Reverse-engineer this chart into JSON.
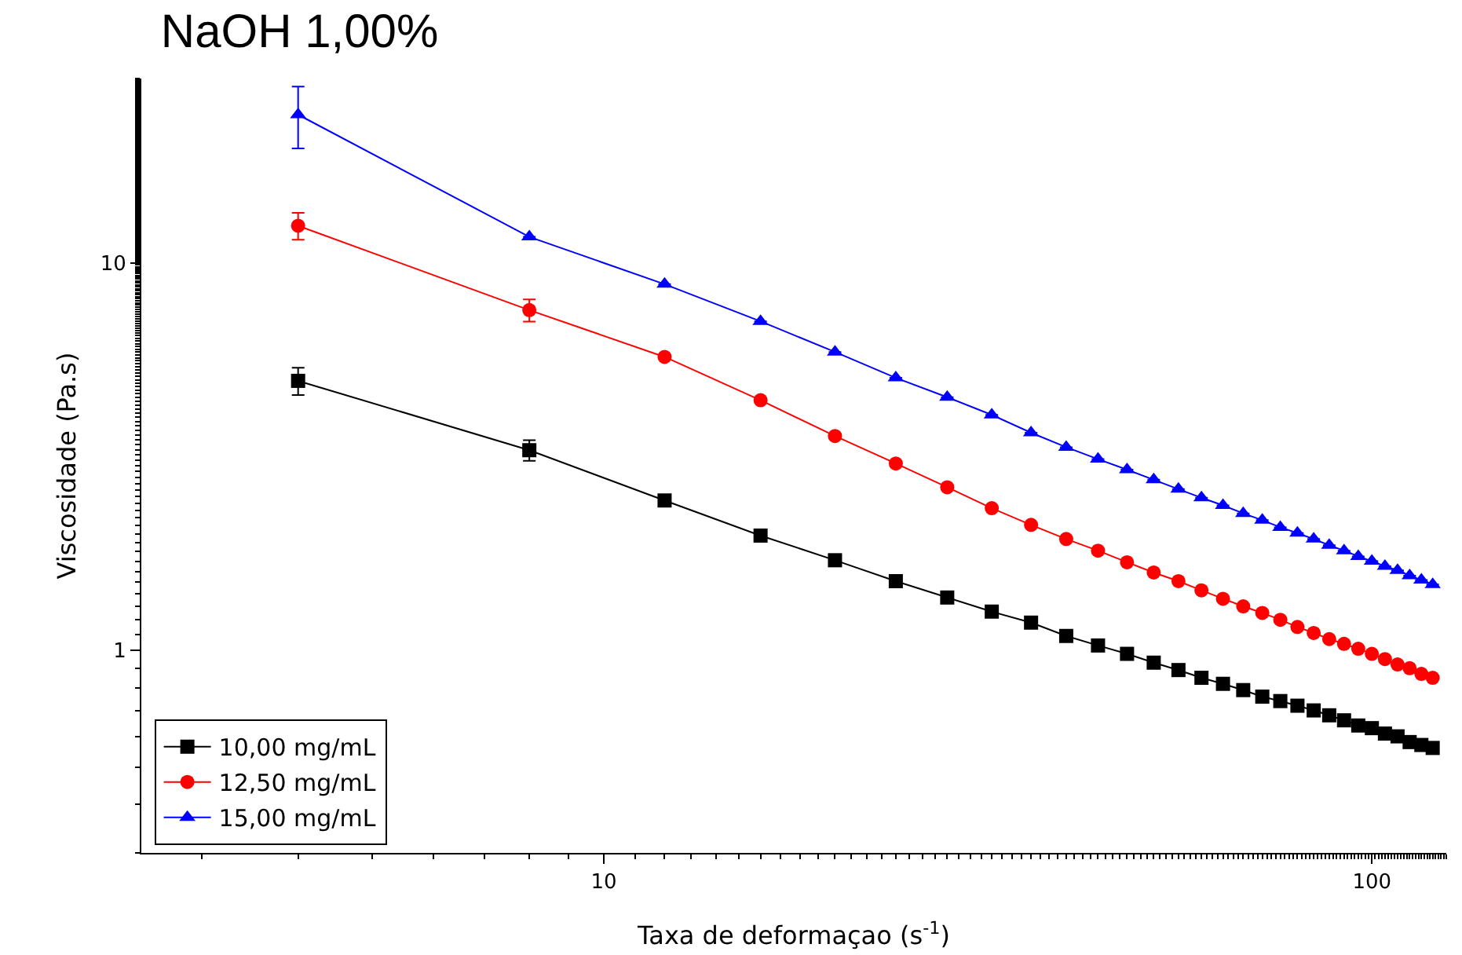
{
  "chart_data": {
    "type": "line",
    "title": "NaOH 1,00%",
    "xlabel": "Taxa de deformaçao (s$^{-1}$)",
    "ylabel": "Viscosidade (Pa.s)",
    "x": [
      4,
      8,
      12,
      16,
      20,
      24,
      28,
      32,
      36,
      40,
      44,
      48,
      52,
      56,
      60,
      64,
      68,
      72,
      76,
      80,
      84,
      88,
      92,
      96,
      100,
      104,
      108,
      112,
      116,
      120
    ],
    "series": [
      {
        "name": "10,00 mg/mL",
        "color": "#000000",
        "marker": "square",
        "values": [
          4.97,
          3.29,
          2.44,
          1.98,
          1.71,
          1.51,
          1.37,
          1.26,
          1.18,
          1.09,
          1.03,
          0.98,
          0.93,
          0.89,
          0.85,
          0.82,
          0.79,
          0.76,
          0.74,
          0.72,
          0.7,
          0.68,
          0.66,
          0.64,
          0.63,
          0.61,
          0.6,
          0.58,
          0.57,
          0.56
        ],
        "errors": [
          0.4,
          0.2,
          null,
          null,
          null,
          null,
          null,
          null,
          null,
          null,
          null,
          null,
          null,
          null,
          null,
          null,
          null,
          null,
          null,
          null,
          null,
          null,
          null,
          null,
          null,
          null,
          null,
          null,
          null,
          null
        ]
      },
      {
        "name": "12,50 mg/mL",
        "color": "#ff0000",
        "marker": "circle",
        "values": [
          12.5,
          7.57,
          5.73,
          4.43,
          3.58,
          3.04,
          2.64,
          2.33,
          2.11,
          1.94,
          1.81,
          1.69,
          1.59,
          1.51,
          1.43,
          1.36,
          1.3,
          1.25,
          1.2,
          1.15,
          1.11,
          1.07,
          1.04,
          1.01,
          0.98,
          0.95,
          0.92,
          0.9,
          0.87,
          0.85
        ],
        "errors": [
          1.0,
          0.5,
          null,
          null,
          null,
          null,
          null,
          null,
          null,
          null,
          null,
          null,
          null,
          null,
          null,
          null,
          null,
          null,
          null,
          null,
          null,
          null,
          null,
          null,
          null,
          null,
          null,
          null,
          null,
          null
        ]
      },
      {
        "name": "15,00 mg/mL",
        "color": "#0000ff",
        "marker": "triangle",
        "values": [
          24.2,
          11.7,
          8.83,
          7.08,
          5.9,
          5.06,
          4.51,
          4.06,
          3.65,
          3.35,
          3.12,
          2.93,
          2.76,
          2.61,
          2.48,
          2.37,
          2.26,
          2.17,
          2.08,
          2.01,
          1.94,
          1.87,
          1.81,
          1.75,
          1.7,
          1.65,
          1.61,
          1.56,
          1.52,
          1.48
        ],
        "errors": [
          4.4,
          null,
          null,
          null,
          null,
          null,
          null,
          null,
          null,
          null,
          null,
          null,
          null,
          null,
          null,
          null,
          null,
          null,
          null,
          null,
          null,
          null,
          null,
          null,
          null,
          null,
          null,
          null,
          null,
          null
        ]
      }
    ],
    "log": "xy",
    "xlim": [
      2.5,
      125
    ],
    "xticks": [
      10,
      100
    ],
    "ylim": [
      0.3,
      30
    ],
    "yticks": [
      1,
      10
    ],
    "grid": false,
    "legend": "bottom left"
  }
}
